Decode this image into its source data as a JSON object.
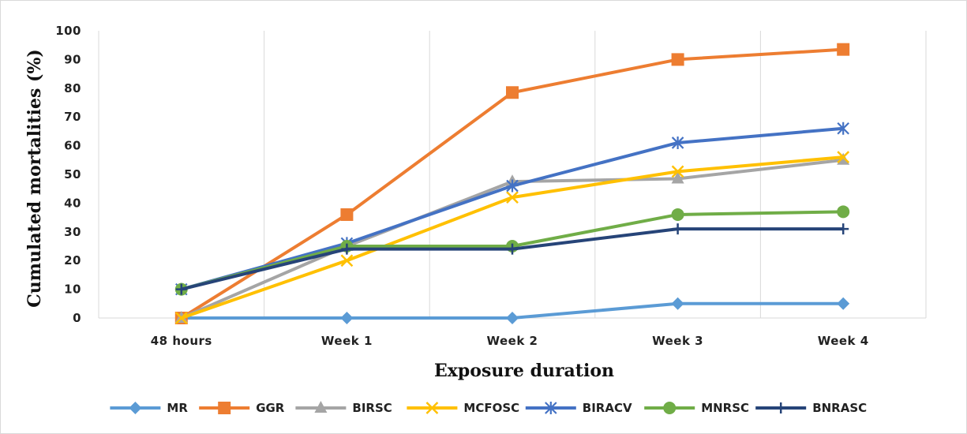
{
  "chart_data": {
    "type": "line",
    "title": "",
    "xlabel": "Exposure duration",
    "ylabel": "Cumulated mortalities (%)",
    "categories": [
      "48 hours",
      "Week 1",
      "Week 2",
      "Week 3",
      "Week 4"
    ],
    "ylim": [
      0,
      100
    ],
    "yticks": [
      0,
      10,
      20,
      30,
      40,
      50,
      60,
      70,
      80,
      90,
      100
    ],
    "grid": "vertical",
    "legend_position": "bottom",
    "series": [
      {
        "name": "MR",
        "color": "#5B9BD5",
        "marker": "diamond",
        "values": [
          0,
          0,
          0,
          5,
          5
        ]
      },
      {
        "name": "GGR",
        "color": "#ED7D31",
        "marker": "square",
        "values": [
          0,
          36,
          78.5,
          90,
          93.5
        ]
      },
      {
        "name": "BIRSC",
        "color": "#A5A5A5",
        "marker": "triangle",
        "values": [
          0,
          25,
          47.5,
          48.5,
          55
        ]
      },
      {
        "name": "MCFOSC",
        "color": "#FFC000",
        "marker": "x",
        "values": [
          0,
          20,
          42,
          51,
          56
        ]
      },
      {
        "name": "BIRACV",
        "color": "#4472C4",
        "marker": "star",
        "values": [
          10,
          26,
          46,
          61,
          66
        ]
      },
      {
        "name": "MNRSC",
        "color": "#70AD47",
        "marker": "circle",
        "values": [
          10,
          25,
          25,
          36,
          37
        ]
      },
      {
        "name": "BNRASC",
        "color": "#264478",
        "marker": "plus",
        "values": [
          10,
          24,
          24,
          31,
          31
        ]
      }
    ]
  }
}
